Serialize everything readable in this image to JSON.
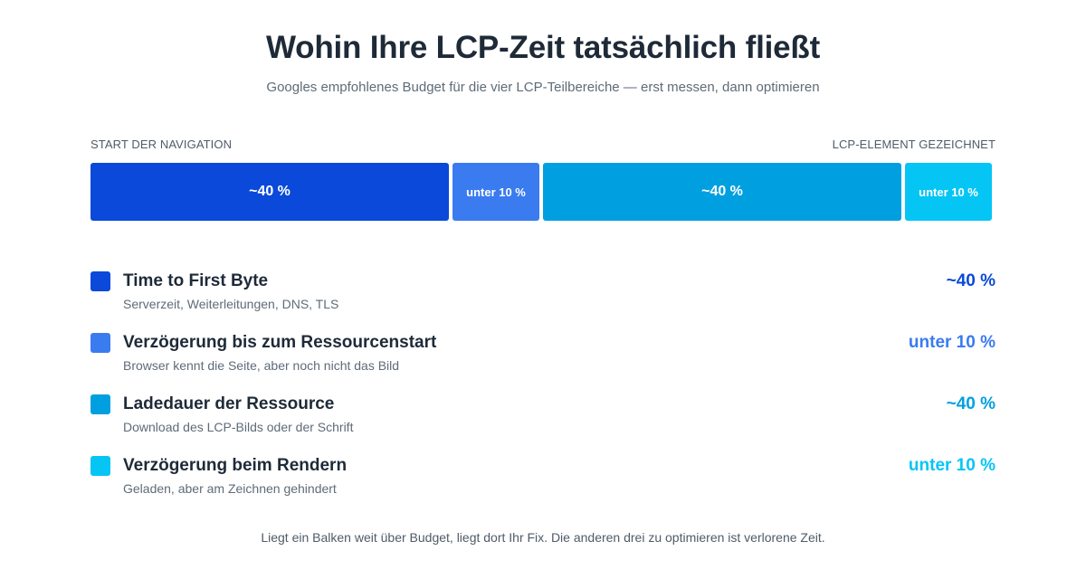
{
  "header": {
    "title": "Wohin Ihre LCP-Zeit tatsächlich fließt",
    "subtitle": "Googles empfohlenes Budget für die vier LCP-Teilbereiche — erst messen, dann optimieren"
  },
  "axis": {
    "start_label": "START DER NAVIGATION",
    "end_label": "LCP-ELEMENT GEZEICHNET"
  },
  "colors": {
    "ttfb": "#0a49d9",
    "delay": "#3a7bf0",
    "load": "#00a0e0",
    "render": "#05c5f5"
  },
  "bar": {
    "segments": [
      {
        "label": "~40 %",
        "share": 40,
        "color": "#0a49d9"
      },
      {
        "label": "unter 10 %",
        "share": 10,
        "color": "#3a7bf0"
      },
      {
        "label": "~40 %",
        "share": 40,
        "color": "#00a0e0"
      },
      {
        "label": "unter 10 %",
        "share": 10,
        "color": "#05c5f5"
      }
    ]
  },
  "legend": [
    {
      "title": "Time to First Byte",
      "desc": "Serverzeit, Weiterleitungen, DNS, TLS",
      "value": "~40 %",
      "color": "#0a49d9"
    },
    {
      "title": "Verzögerung bis zum Ressourcenstart",
      "desc": "Browser kennt die Seite, aber noch nicht das Bild",
      "value": "unter 10 %",
      "color": "#3a7bf0"
    },
    {
      "title": "Ladedauer der Ressource",
      "desc": "Download des LCP-Bilds oder der Schrift",
      "value": "~40 %",
      "color": "#00a0e0"
    },
    {
      "title": "Verzögerung beim Rendern",
      "desc": "Geladen, aber am Zeichnen gehindert",
      "value": "unter 10 %",
      "color": "#05c5f5"
    }
  ],
  "footer": {
    "note": "Liegt ein Balken weit über Budget, liegt dort Ihr Fix. Die anderen drei zu optimieren ist verlorene Zeit."
  }
}
